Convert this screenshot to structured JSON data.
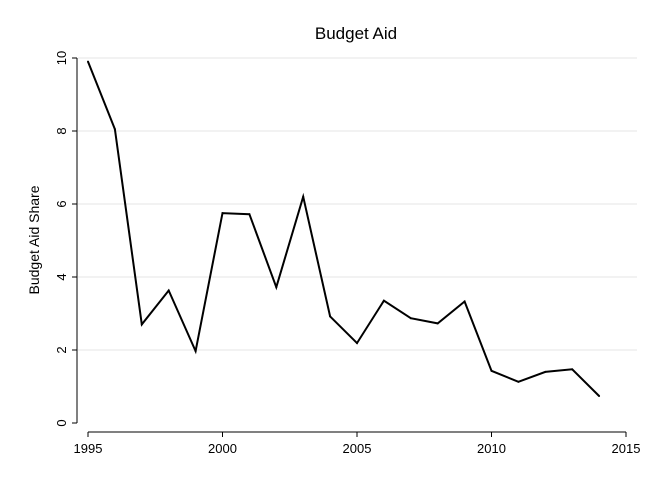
{
  "chart_data": {
    "type": "line",
    "title": "Budget Aid",
    "xlabel": "",
    "ylabel": "Budget Aid Share",
    "xlim": [
      1995,
      2015
    ],
    "ylim": [
      0,
      10
    ],
    "x_ticks": [
      1995,
      2000,
      2005,
      2010,
      2015
    ],
    "y_ticks": [
      0,
      2,
      4,
      6,
      8,
      10
    ],
    "grid": true,
    "line_color": "#000000",
    "grid_color": "#e6e6e6",
    "series": [
      {
        "x": [
          1995,
          1996,
          1997,
          1998,
          1999,
          2000,
          2001,
          2002,
          2003,
          2004,
          2005,
          2006,
          2007,
          2008,
          2009,
          2010,
          2011,
          2012,
          2013,
          2014
        ],
        "values": [
          9.9,
          8.05,
          2.7,
          3.63,
          1.97,
          5.75,
          5.72,
          3.72,
          6.2,
          2.92,
          2.19,
          3.35,
          2.87,
          2.73,
          3.33,
          1.43,
          1.13,
          1.4,
          1.47,
          0.74
        ]
      }
    ]
  }
}
